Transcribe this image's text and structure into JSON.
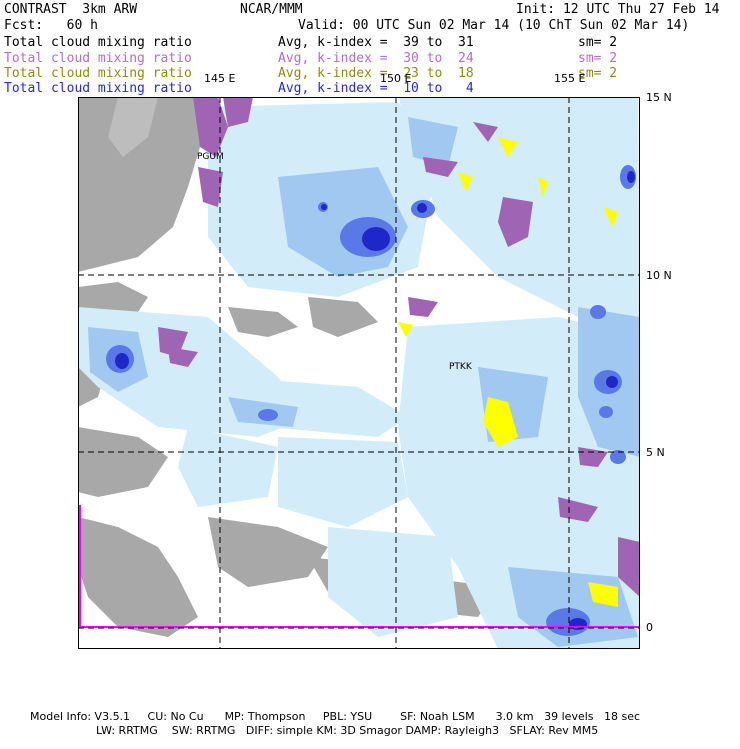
{
  "header": {
    "left_line1": "CONTRAST  3km ARW",
    "left_line2": "Fcst:   60 h",
    "center_title": "NCAR/MMM",
    "init": "Init: 12 UTC Thu 27 Feb 14",
    "valid": "Valid: 00 UTC Sun 02 Mar 14 (10 ChT Sun 02 Mar 14)"
  },
  "fields": [
    {
      "name": "Total cloud mixing ratio",
      "stat": "Avg, k-index =  39 to  31",
      "sm": "sm= 2",
      "color": "#000000"
    },
    {
      "name": "Total cloud mixing ratio",
      "stat": "Avg, k-index =  30 to  24",
      "sm": "sm= 2",
      "color": "#b46ec8"
    },
    {
      "name": "Total cloud mixing ratio",
      "stat": "Avg, k-index =  23 to  18",
      "sm": "sm= 2",
      "color": "#8c8c14"
    },
    {
      "name": "Total cloud mixing ratio",
      "stat": "Avg, k-index =  10 to   4",
      "sm": "",
      "color": "#2828dc"
    }
  ],
  "map": {
    "lon_labels": [
      "145 E",
      "150 E",
      "155 E"
    ],
    "lat_labels": [
      "15 N",
      "10 N",
      "5 N",
      "0"
    ],
    "stations": [
      "PGUM",
      "PTKK"
    ],
    "colors": {
      "gray": "#a8a8a8",
      "light_blue": "#d2ecfa",
      "mid_blue": "#a0c8f0",
      "blue": "#5a78e6",
      "deep_blue": "#1e28c8",
      "purple": "#a064b4",
      "yellow": "#ffff00",
      "magenta": "#ff00ff"
    }
  },
  "footer": {
    "line1": "Model Info: V3.5.1     CU: No Cu      MP: Thompson     PBL: YSU        SF: Noah LSM      3.0 km   39 levels   18 sec",
    "line2": "LW: RRTMG    SW: RRTMG   DIFF: simple KM: 3D Smagor DAMP: Rayleigh3   SFLAY: Rev MM5"
  }
}
